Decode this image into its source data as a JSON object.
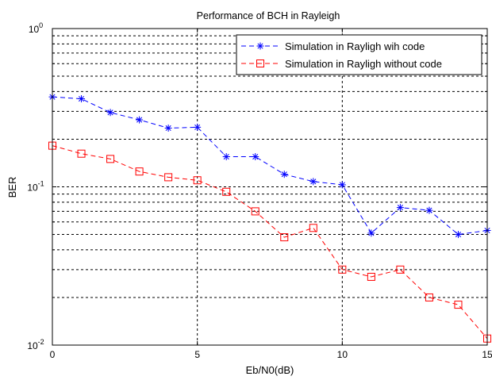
{
  "chart_data": {
    "type": "line",
    "title": "Performance of BCH in Rayleigh",
    "xlabel": "Eb/N0(dB)",
    "ylabel": "BER",
    "xlim": [
      0,
      15
    ],
    "ylim": [
      0.01,
      1
    ],
    "yscale": "log",
    "grid": true,
    "legend_position": "top-right",
    "x_ticks": [
      "0",
      "5",
      "10",
      "15"
    ],
    "y_ticks": [
      {
        "base": "10",
        "exp": "-2"
      },
      {
        "base": "10",
        "exp": "-1"
      },
      {
        "base": "10",
        "exp": "0"
      }
    ],
    "x": [
      0,
      1,
      2,
      3,
      4,
      5,
      6,
      7,
      8,
      9,
      10,
      11,
      12,
      13,
      14,
      15
    ],
    "series": [
      {
        "name": "Simulation in Rayligh wih code",
        "color": "#0000ff",
        "marker": "asterisk",
        "line": "dashed",
        "values": [
          0.37,
          0.36,
          0.295,
          0.265,
          0.235,
          0.238,
          0.155,
          0.155,
          0.12,
          0.108,
          0.103,
          0.051,
          0.074,
          0.071,
          0.05,
          0.053
        ]
      },
      {
        "name": "Simulation in Rayligh without code",
        "color": "#ff0000",
        "marker": "square",
        "line": "dashed",
        "values": [
          0.182,
          0.162,
          0.15,
          0.125,
          0.115,
          0.11,
          0.093,
          0.07,
          0.048,
          0.055,
          0.03,
          0.027,
          0.03,
          0.02,
          0.018,
          0.011
        ]
      }
    ]
  }
}
